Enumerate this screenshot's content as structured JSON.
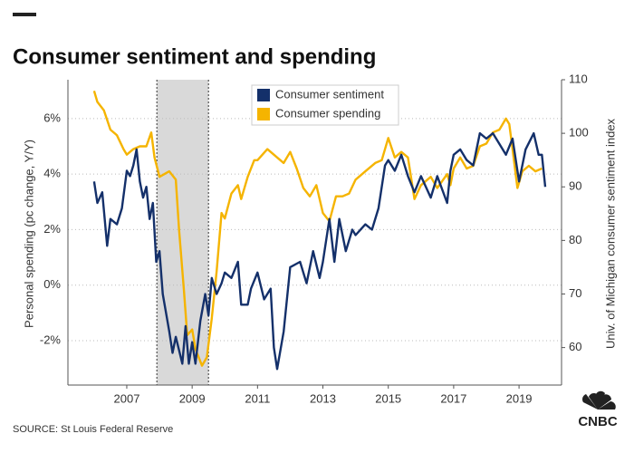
{
  "chart_data": {
    "type": "line",
    "title": "Consumer sentiment and spending",
    "y_label": "Personal spending (pc change, Y/Y)",
    "y2_label": "Univ. of Michigan consumer sentiment index",
    "source": "SOURCE: St Louis Federal Reserve",
    "logo": "CNBC",
    "xlim": [
      2005.2,
      2020.3
    ],
    "xticks": [
      2007,
      2009,
      2011,
      2013,
      2015,
      2017,
      2019
    ],
    "ylim": [
      -3.6,
      7.4
    ],
    "yticks": [
      {
        "value": -2,
        "label": "-2%"
      },
      {
        "value": 0,
        "label": "0%"
      },
      {
        "value": 2,
        "label": "2%"
      },
      {
        "value": 4,
        "label": "4%"
      },
      {
        "value": 6,
        "label": "6%"
      }
    ],
    "y2lim": [
      53,
      110
    ],
    "y2ticks": [
      60,
      70,
      80,
      90,
      100,
      110
    ],
    "grid": true,
    "legend": "top",
    "shaded_ranges": [
      [
        2007.92,
        2009.5
      ]
    ],
    "shade_color": "#d9d9d9",
    "series": [
      {
        "name": "Consumer sentiment",
        "color": "#14306a",
        "axis": "y2",
        "x": [
          2006.0,
          2006.1,
          2006.25,
          2006.4,
          2006.5,
          2006.7,
          2006.85,
          2007.0,
          2007.1,
          2007.2,
          2007.3,
          2007.4,
          2007.5,
          2007.6,
          2007.7,
          2007.8,
          2007.9,
          2008.0,
          2008.1,
          2008.3,
          2008.4,
          2008.5,
          2008.7,
          2008.8,
          2008.9,
          2009.0,
          2009.1,
          2009.25,
          2009.4,
          2009.5,
          2009.6,
          2009.75,
          2009.9,
          2010.0,
          2010.2,
          2010.4,
          2010.5,
          2010.7,
          2010.8,
          2011.0,
          2011.2,
          2011.4,
          2011.5,
          2011.6,
          2011.8,
          2012.0,
          2012.3,
          2012.5,
          2012.7,
          2012.9,
          2013.0,
          2013.2,
          2013.35,
          2013.5,
          2013.7,
          2013.9,
          2014.0,
          2014.3,
          2014.5,
          2014.7,
          2014.9,
          2015.0,
          2015.2,
          2015.4,
          2015.6,
          2015.8,
          2016.0,
          2016.3,
          2016.5,
          2016.8,
          2016.9,
          2017.0,
          2017.2,
          2017.4,
          2017.6,
          2017.8,
          2018.0,
          2018.2,
          2018.4,
          2018.6,
          2018.8,
          2019.0,
          2019.2,
          2019.45,
          2019.6,
          2019.7,
          2019.8
        ],
        "values": [
          91,
          87,
          89,
          79,
          84,
          83,
          86,
          93,
          92,
          94,
          97,
          91,
          88,
          90,
          84,
          87,
          76,
          78,
          70,
          63,
          59,
          62,
          57,
          64,
          57,
          61,
          57,
          65,
          70,
          66,
          73,
          70,
          72,
          74,
          73,
          76,
          68,
          68,
          71,
          74,
          69,
          71,
          60,
          56,
          63,
          75,
          76,
          72,
          78,
          73,
          76,
          84,
          76,
          84,
          78,
          82,
          81,
          83,
          82,
          86,
          94,
          95,
          93,
          96,
          92,
          89,
          92,
          88,
          92,
          87,
          93,
          96,
          97,
          95,
          94,
          100,
          99,
          100,
          98,
          96,
          99,
          91,
          97,
          100,
          96,
          96,
          90
        ]
      },
      {
        "name": "Consumer spending",
        "color": "#f5b400",
        "x": [
          2006.0,
          2006.1,
          2006.3,
          2006.5,
          2006.7,
          2006.9,
          2007.0,
          2007.2,
          2007.4,
          2007.6,
          2007.75,
          2007.85,
          2008.0,
          2008.3,
          2008.5,
          2008.6,
          2008.75,
          2008.85,
          2009.0,
          2009.1,
          2009.3,
          2009.45,
          2009.6,
          2009.75,
          2009.9,
          2010.0,
          2010.2,
          2010.4,
          2010.5,
          2010.7,
          2010.9,
          2011.0,
          2011.3,
          2011.6,
          2011.8,
          2012.0,
          2012.2,
          2012.4,
          2012.6,
          2012.8,
          2013.0,
          2013.2,
          2013.4,
          2013.6,
          2013.8,
          2014.0,
          2014.3,
          2014.6,
          2014.8,
          2015.0,
          2015.2,
          2015.4,
          2015.6,
          2015.8,
          2016.0,
          2016.3,
          2016.5,
          2016.8,
          2016.9,
          2017.0,
          2017.2,
          2017.4,
          2017.6,
          2017.8,
          2018.0,
          2018.2,
          2018.4,
          2018.6,
          2018.7,
          2018.8,
          2018.95,
          2019.1,
          2019.3,
          2019.5,
          2019.7
        ],
        "values": [
          7.0,
          6.6,
          6.3,
          5.6,
          5.4,
          4.9,
          4.7,
          4.9,
          5.0,
          5.0,
          5.5,
          4.6,
          3.9,
          4.1,
          3.8,
          2.0,
          -0.2,
          -1.8,
          -1.6,
          -2.3,
          -2.9,
          -2.6,
          -1.2,
          0.5,
          2.6,
          2.4,
          3.3,
          3.6,
          3.1,
          3.9,
          4.5,
          4.5,
          4.9,
          4.6,
          4.4,
          4.8,
          4.2,
          3.5,
          3.2,
          3.6,
          2.6,
          2.3,
          3.2,
          3.2,
          3.3,
          3.8,
          4.1,
          4.4,
          4.5,
          5.3,
          4.6,
          4.8,
          4.6,
          3.1,
          3.6,
          3.9,
          3.5,
          4.0,
          3.6,
          4.2,
          4.6,
          4.2,
          4.3,
          5.0,
          5.1,
          5.5,
          5.6,
          6.0,
          5.8,
          4.9,
          3.5,
          4.1,
          4.3,
          4.1,
          4.2
        ]
      }
    ]
  }
}
